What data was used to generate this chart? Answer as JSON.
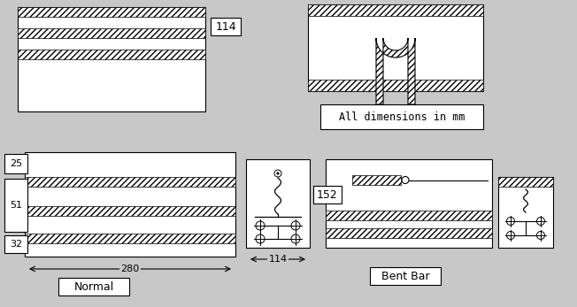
{
  "bg_color": "#c8c8c8",
  "panel_color": "#ffffff",
  "hatch_color": "#000000",
  "title_normal": "Normal",
  "title_bent": "Bent Bar",
  "dim_text": "All dimensions in mm",
  "label_114_top": "114",
  "label_114_bot": "114",
  "label_152": "152",
  "label_280": "280",
  "label_25": "25",
  "label_51": "51",
  "label_32": "32",
  "fig_w": 6.52,
  "fig_h": 3.47,
  "dpi": 100
}
